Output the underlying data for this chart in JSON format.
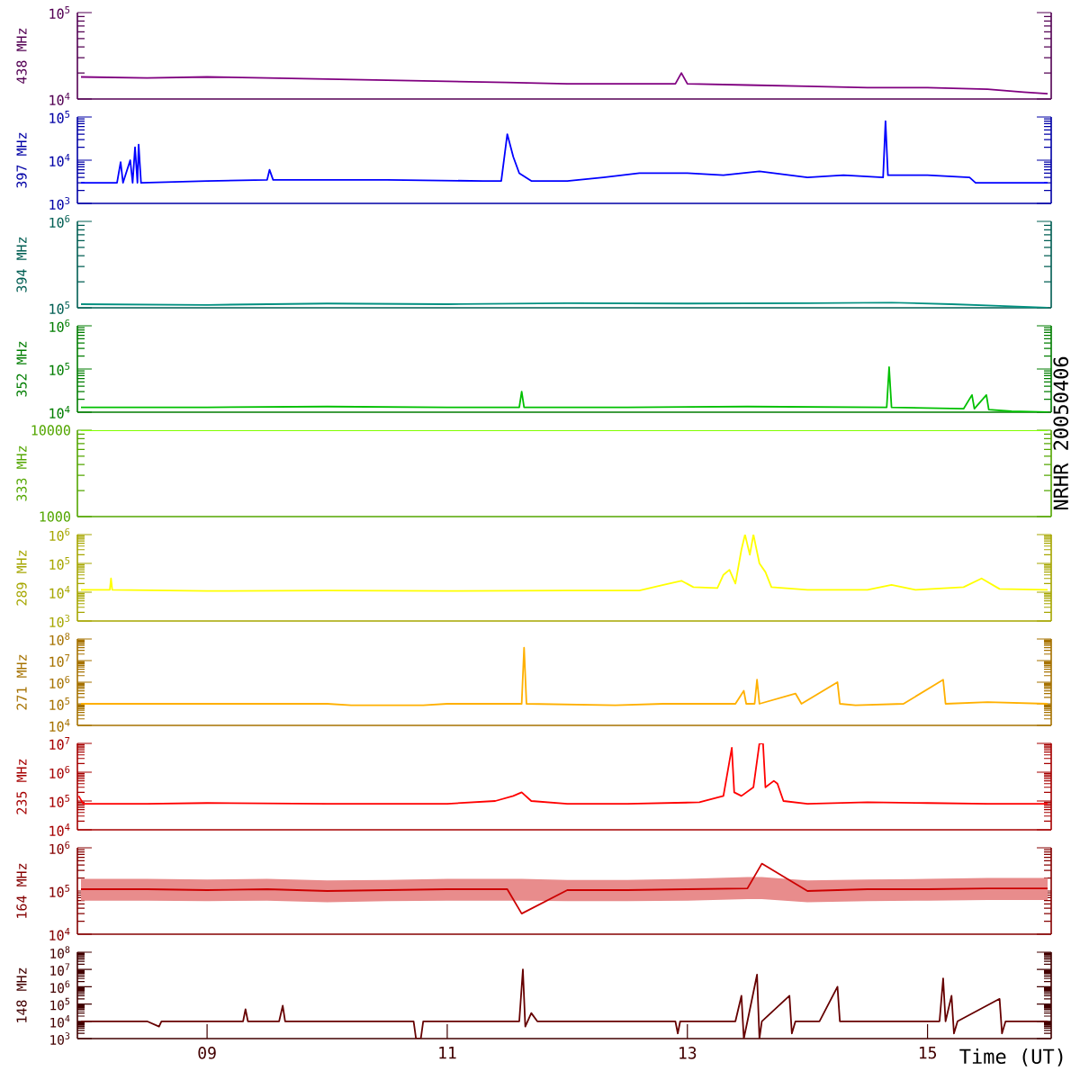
{
  "chart_data": [
    {
      "type": "line",
      "ylabel": "438 MHz",
      "log": "y",
      "tick_labels": "y",
      "xlim": [
        7.92,
        16.03
      ],
      "ylim": [
        10000,
        100000
      ],
      "yticks": [
        {
          "value": 10000,
          "label": "10$^{4}$"
        },
        {
          "value": 100000,
          "label": "10$^{5}$"
        }
      ],
      "series": [
        {
          "color": "#800080",
          "x": [
            7.95,
            8.5,
            9.0,
            9.5,
            10.0,
            10.5,
            11.0,
            11.5,
            12.0,
            12.5,
            12.9,
            12.95,
            13.0,
            13.5,
            14.0,
            14.5,
            15.0,
            15.5,
            15.8,
            16.0
          ],
          "values": [
            18000,
            17500,
            18000,
            17500,
            17000,
            16500,
            16000,
            15500,
            15000,
            15000,
            15000,
            20000,
            15000,
            14500,
            14000,
            13500,
            13500,
            13000,
            12000,
            11500
          ]
        }
      ]
    },
    {
      "type": "line",
      "ylabel": "397 MHz",
      "log": "y",
      "tick_labels": "y",
      "xlim": [
        7.92,
        16.03
      ],
      "ylim": [
        1000,
        100000
      ],
      "yticks": [
        {
          "value": 1000,
          "label": "10$^{3}$"
        },
        {
          "value": 10000,
          "label": "10$^{4}$"
        },
        {
          "value": 100000,
          "label": "10$^{5}$"
        }
      ],
      "series": [
        {
          "color": "#0000ff",
          "x": [
            7.95,
            8.25,
            8.28,
            8.3,
            8.36,
            8.38,
            8.4,
            8.42,
            8.43,
            8.45,
            9.0,
            9.5,
            9.52,
            9.55,
            10.5,
            11.3,
            11.45,
            11.5,
            11.55,
            11.6,
            11.7,
            12.0,
            12.3,
            12.6,
            13.0,
            13.3,
            13.6,
            14.0,
            14.3,
            14.63,
            14.65,
            14.67,
            15.0,
            15.35,
            15.4,
            16.0
          ],
          "values": [
            3000,
            3000,
            9000,
            3000,
            10000,
            3000,
            20000,
            3000,
            23000,
            3000,
            3300,
            3500,
            6000,
            3500,
            3500,
            3300,
            3300,
            40000,
            12000,
            5000,
            3300,
            3300,
            4000,
            5000,
            5000,
            4500,
            5500,
            4000,
            4500,
            4000,
            80000,
            4500,
            4500,
            4000,
            3000,
            3000
          ]
        }
      ]
    },
    {
      "type": "line",
      "ylabel": "394 MHz",
      "log": "y",
      "tick_labels": "y",
      "xlim": [
        7.92,
        16.03
      ],
      "ylim": [
        100000,
        1000000
      ],
      "yticks": [
        {
          "value": 100000,
          "label": "10$^{5}$"
        },
        {
          "value": 1000000,
          "label": "10$^{6}$"
        }
      ],
      "series": [
        {
          "color": "#009080",
          "x": [
            7.95,
            9.0,
            10.0,
            11.0,
            12.0,
            13.0,
            14.0,
            14.7,
            15.2,
            15.6,
            16.0
          ],
          "values": [
            110000,
            108000,
            112000,
            110000,
            113000,
            112000,
            113000,
            115000,
            110000,
            105000,
            100000
          ]
        }
      ]
    },
    {
      "type": "line",
      "ylabel": "352 MHz",
      "log": "y",
      "tick_labels": "y",
      "xlim": [
        7.92,
        16.03
      ],
      "ylim": [
        10000,
        1000000
      ],
      "yticks": [
        {
          "value": 10000,
          "label": "10$^{4}$"
        },
        {
          "value": 100000,
          "label": "10$^{5}$"
        },
        {
          "value": 1000000,
          "label": "10$^{6}$"
        }
      ],
      "series": [
        {
          "color": "#00c000",
          "x": [
            7.95,
            9.0,
            10.0,
            11.0,
            11.6,
            11.62,
            11.64,
            12.5,
            13.5,
            14.66,
            14.68,
            14.7,
            15.3,
            15.37,
            15.39,
            15.49,
            15.51,
            15.7,
            16.0
          ],
          "values": [
            13000,
            13000,
            13500,
            13000,
            13000,
            30000,
            13000,
            13000,
            13500,
            13000,
            110000,
            13000,
            12000,
            25000,
            12000,
            25000,
            11500,
            10500,
            10000
          ]
        }
      ]
    },
    {
      "type": "line",
      "ylabel": "333 MHz",
      "log": "y",
      "tick_labels": "y",
      "xlim": [
        7.92,
        16.03
      ],
      "ylim": [
        1000,
        10000
      ],
      "yticks": [
        1000,
        10000
      ],
      "annotations": [
        "NRHR 20050406"
      ],
      "series": [
        {
          "color": "#80ff00",
          "x": [
            7.95,
            16.0
          ],
          "values": [
            10000,
            10000
          ]
        }
      ]
    },
    {
      "type": "line",
      "ylabel": "289 MHz",
      "log": "y",
      "tick_labels": "y",
      "xlim": [
        7.92,
        16.03
      ],
      "ylim": [
        1000,
        1000000
      ],
      "yticks": [
        {
          "value": 1000,
          "label": "10$^{3}$"
        },
        {
          "value": 10000,
          "label": "10$^{4}$"
        },
        {
          "value": 100000,
          "label": "10$^{5}$"
        },
        {
          "value": 1000000,
          "label": "10$^{6}$"
        }
      ],
      "series": [
        {
          "color": "#ffff00",
          "x": [
            7.95,
            8.19,
            8.2,
            8.21,
            9.0,
            10.0,
            11.0,
            12.0,
            12.6,
            12.8,
            12.95,
            13.05,
            13.25,
            13.3,
            13.35,
            13.4,
            13.45,
            13.48,
            13.52,
            13.55,
            13.6,
            13.65,
            13.7,
            14.0,
            14.5,
            14.7,
            14.9,
            15.3,
            15.45,
            15.6,
            16.0
          ],
          "values": [
            12000,
            12000,
            30000,
            12000,
            11000,
            11500,
            11000,
            11500,
            11500,
            18000,
            25000,
            15000,
            14000,
            40000,
            60000,
            20000,
            300000,
            1000000,
            200000,
            1000000,
            100000,
            50000,
            15000,
            12000,
            12000,
            18000,
            12000,
            15000,
            30000,
            13000,
            12000
          ]
        }
      ]
    },
    {
      "type": "line",
      "ylabel": "271 MHz",
      "log": "y",
      "tick_labels": "y",
      "xlim": [
        7.92,
        16.03
      ],
      "ylim": [
        10000,
        100000000
      ],
      "yticks": [
        {
          "value": 10000,
          "label": "10$^{4}$"
        },
        {
          "value": 100000,
          "label": "10$^{5}$"
        },
        {
          "value": 1000000,
          "label": "10$^{6}$"
        },
        {
          "value": 10000000,
          "label": "10$^{7}$"
        },
        {
          "value": 100000000,
          "label": "10$^{8}$"
        }
      ],
      "series": [
        {
          "color": "#ffb000",
          "x": [
            7.95,
            10.0,
            10.2,
            10.8,
            11.0,
            11.62,
            11.64,
            11.66,
            12.4,
            12.8,
            13.4,
            13.47,
            13.49,
            13.56,
            13.58,
            13.6,
            13.9,
            13.95,
            14.25,
            14.27,
            14.4,
            14.8,
            15.13,
            15.15,
            15.5,
            16.0
          ],
          "values": [
            100000,
            100000,
            85000,
            85000,
            100000,
            100000,
            40000000,
            100000,
            85000,
            100000,
            100000,
            400000,
            100000,
            100000,
            1300000,
            100000,
            300000,
            100000,
            1000000,
            100000,
            85000,
            100000,
            1300000,
            100000,
            120000,
            100000
          ]
        }
      ]
    },
    {
      "type": "line",
      "ylabel": "235 MHz",
      "log": "y",
      "tick_labels": "y",
      "xlim": [
        7.92,
        16.03
      ],
      "ylim": [
        10000,
        10000000
      ],
      "yticks": [
        {
          "value": 10000,
          "label": "10$^{4}$"
        },
        {
          "value": 100000,
          "label": "10$^{5}$"
        },
        {
          "value": 1000000,
          "label": "10$^{6}$"
        },
        {
          "value": 10000000,
          "label": "10$^{7}$"
        }
      ],
      "series": [
        {
          "color": "#ff0000",
          "x": [
            7.93,
            7.97,
            8.5,
            9.0,
            10.0,
            11.0,
            11.4,
            11.55,
            11.62,
            11.7,
            12.0,
            12.5,
            13.1,
            13.3,
            13.37,
            13.39,
            13.45,
            13.55,
            13.6,
            13.63,
            13.65,
            13.72,
            13.75,
            13.8,
            14.0,
            14.5,
            15.0,
            15.5,
            16.0
          ],
          "values": [
            150000,
            80000,
            80000,
            85000,
            80000,
            80000,
            100000,
            150000,
            200000,
            100000,
            80000,
            80000,
            90000,
            150000,
            7000000,
            200000,
            150000,
            300000,
            10000000,
            10000000,
            300000,
            500000,
            400000,
            100000,
            80000,
            90000,
            85000,
            80000,
            80000
          ]
        }
      ]
    },
    {
      "type": "line",
      "ylabel": "164 MHz",
      "log": "y",
      "tick_labels": "y",
      "xlim": [
        7.92,
        16.03
      ],
      "ylim": [
        10000,
        1000000
      ],
      "yticks": [
        {
          "value": 10000,
          "label": "10$^{4}$"
        },
        {
          "value": 100000,
          "label": "10$^{5}$"
        },
        {
          "value": 1000000,
          "label": "10$^{6}$"
        }
      ],
      "series": [
        {
          "color": "#cc0000",
          "x": [
            7.95,
            8.5,
            9.0,
            9.5,
            10.0,
            10.5,
            11.0,
            11.5,
            11.62,
            12.0,
            12.5,
            13.0,
            13.5,
            13.62,
            14.0,
            14.5,
            15.0,
            15.5,
            16.0
          ],
          "values": [
            110000,
            110000,
            105000,
            110000,
            100000,
            105000,
            110000,
            110000,
            30000,
            105000,
            105000,
            110000,
            115000,
            430000,
            100000,
            110000,
            110000,
            115000,
            115000
          ],
          "lower": [
            60000,
            60000,
            58000,
            60000,
            55000,
            58000,
            60000,
            60000,
            60000,
            58000,
            58000,
            60000,
            65000,
            65000,
            55000,
            58000,
            60000,
            62000,
            62000
          ],
          "upper": [
            190000,
            190000,
            185000,
            190000,
            175000,
            180000,
            190000,
            190000,
            190000,
            180000,
            180000,
            190000,
            210000,
            210000,
            175000,
            185000,
            190000,
            200000,
            200000
          ]
        }
      ]
    },
    {
      "type": "line",
      "ylabel": "148 MHz",
      "xlabel": "Time (UT)",
      "log": "y",
      "xlim": [
        7.92,
        16.03
      ],
      "xticks": [
        {
          "value": 9,
          "label": "09"
        },
        {
          "value": 11,
          "label": "11"
        },
        {
          "value": 13,
          "label": "13"
        },
        {
          "value": 15,
          "label": "15"
        }
      ],
      "ylim": [
        1000,
        100000000
      ],
      "yticks": [
        {
          "value": 1000,
          "label": "10$^{3}$"
        },
        {
          "value": 10000,
          "label": "10$^{4}$"
        },
        {
          "value": 100000,
          "label": "10$^{5}$"
        },
        {
          "value": 1000000,
          "label": "10$^{6}$"
        },
        {
          "value": 10000000,
          "label": "10$^{7}$"
        },
        {
          "value": 100000000,
          "label": "10$^{8}$"
        }
      ],
      "series": [
        {
          "color": "#660000",
          "x": [
            7.95,
            8.5,
            8.6,
            8.62,
            9.3,
            9.32,
            9.34,
            9.6,
            9.63,
            9.65,
            10.5,
            10.72,
            10.74,
            10.78,
            10.8,
            11.6,
            11.63,
            11.65,
            11.7,
            11.75,
            12.3,
            12.9,
            12.92,
            12.94,
            13.4,
            13.45,
            13.47,
            13.5,
            13.58,
            13.6,
            13.62,
            13.85,
            13.87,
            13.9,
            14.1,
            14.25,
            14.27,
            15.1,
            15.13,
            15.15,
            15.2,
            15.22,
            15.25,
            15.6,
            15.62,
            15.65,
            16.0
          ],
          "values": [
            10000,
            10000,
            5000,
            10000,
            10000,
            50000,
            10000,
            10000,
            80000,
            10000,
            10000,
            10000,
            1000,
            1000,
            10000,
            10000,
            10000000,
            5000,
            30000,
            10000,
            10000,
            10000,
            2000,
            10000,
            10000,
            300000,
            1000,
            10000,
            5000000,
            1000,
            10000,
            300000,
            2000,
            10000,
            10000,
            1000000,
            10000,
            10000,
            3000000,
            10000,
            300000,
            2000,
            10000,
            200000,
            2000,
            10000,
            10000
          ]
        }
      ]
    }
  ]
}
